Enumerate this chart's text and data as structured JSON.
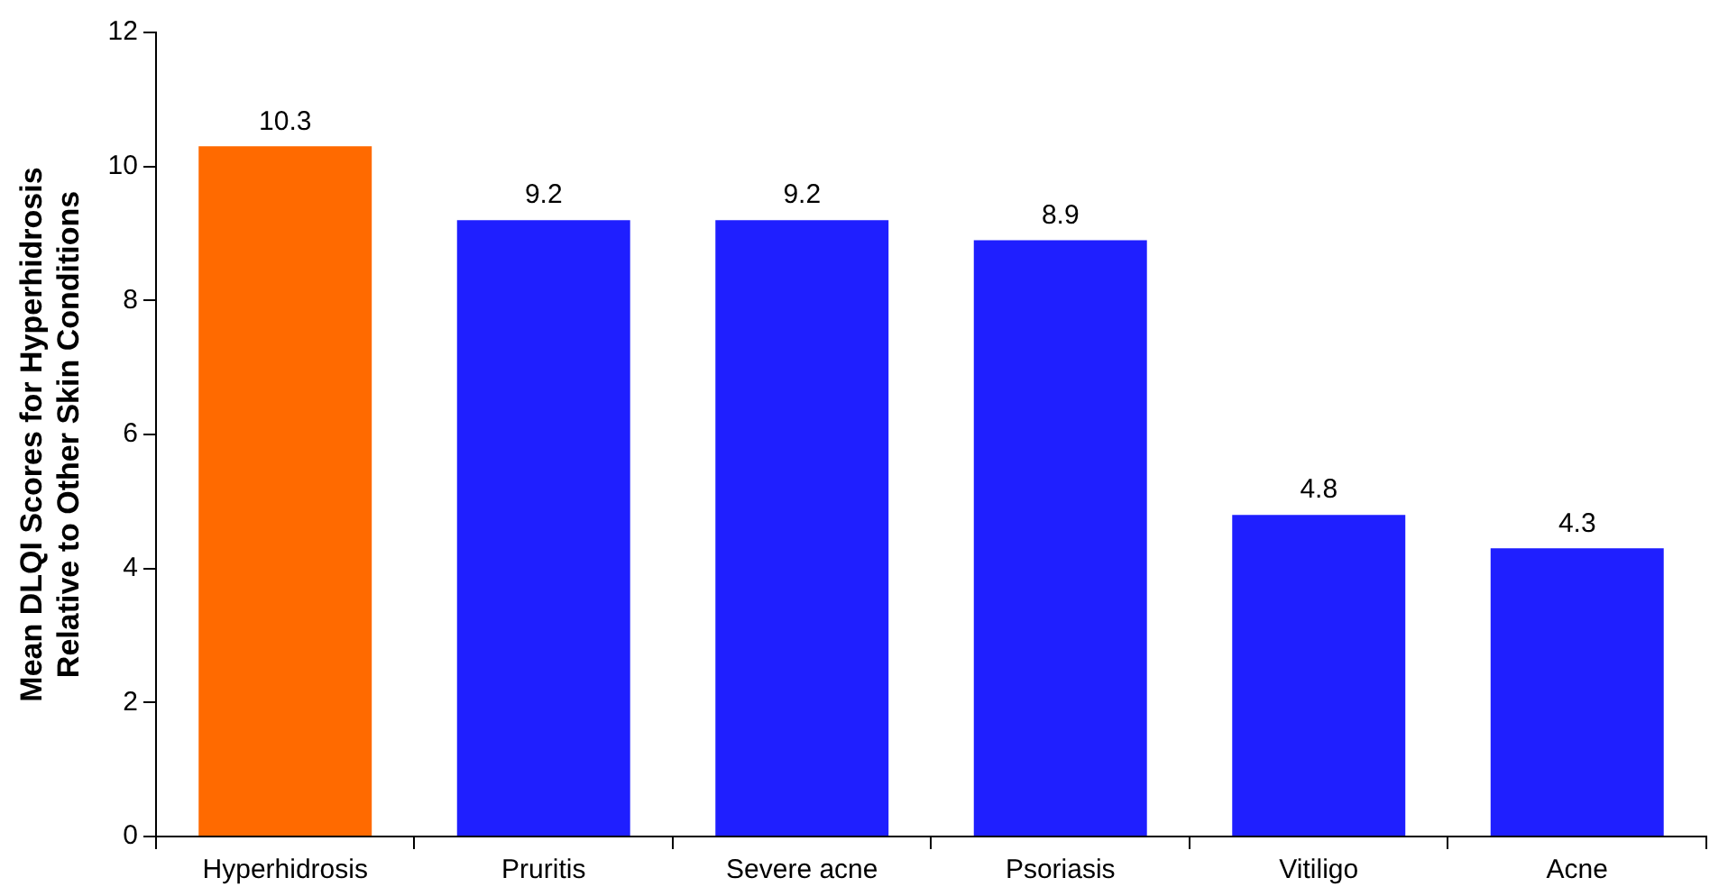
{
  "chart_data": {
    "type": "bar",
    "ylabel": "Mean DLQI Scores for Hyperhidrosis\nRelative to Other Skin Conditions",
    "categories": [
      "Hyperhidrosis",
      "Pruritis",
      "Severe acne",
      "Psoriasis",
      "Vitiligo",
      "Acne"
    ],
    "values": [
      10.3,
      9.2,
      9.2,
      8.9,
      4.8,
      4.3
    ],
    "colors": [
      "#ff6a00",
      "#1f1fff",
      "#1f1fff",
      "#1f1fff",
      "#1f1fff",
      "#1f1fff"
    ],
    "ylim": [
      0,
      12
    ],
    "yticks": [
      0,
      2,
      4,
      6,
      8,
      10,
      12
    ],
    "data_labels": true,
    "grid": false,
    "legend": false
  }
}
